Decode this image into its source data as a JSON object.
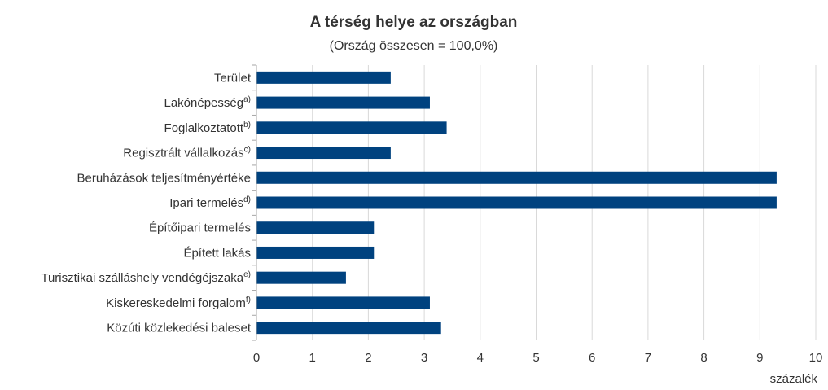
{
  "chart_data": {
    "type": "bar",
    "orientation": "horizontal",
    "title": "A térség helye az országban",
    "subtitle": "(Ország összesen = 100,0%)",
    "categories": [
      {
        "label": "Terület",
        "sup": ""
      },
      {
        "label": "Lakónépesség",
        "sup": "a)"
      },
      {
        "label": "Foglalkoztatott",
        "sup": "b)"
      },
      {
        "label": "Regisztrált vállalkozás",
        "sup": "c)"
      },
      {
        "label": "Beruházások teljesítményértéke",
        "sup": ""
      },
      {
        "label": "Ipari termelés",
        "sup": "d)"
      },
      {
        "label": "Építőipari termelés",
        "sup": ""
      },
      {
        "label": "Épített lakás",
        "sup": ""
      },
      {
        "label": "Turisztikai szálláshely vendégéjszaka",
        "sup": "e)"
      },
      {
        "label": "Kiskereskedelmi forgalom",
        "sup": "f)"
      },
      {
        "label": "Közúti közlekedési baleset",
        "sup": ""
      }
    ],
    "values": [
      2.4,
      3.1,
      3.4,
      2.4,
      9.3,
      9.3,
      2.1,
      2.1,
      1.6,
      3.1,
      3.3
    ],
    "xlim": [
      0,
      10
    ],
    "xticks": [
      "0",
      "1",
      "2",
      "3",
      "4",
      "5",
      "6",
      "7",
      "8",
      "9",
      "10"
    ],
    "xlabel": "százalék",
    "ylabel": "",
    "grid": "vertical",
    "bar_color": "#00427f",
    "grid_color": "#d9d9d9",
    "axis_color": "#a6a6a6"
  }
}
